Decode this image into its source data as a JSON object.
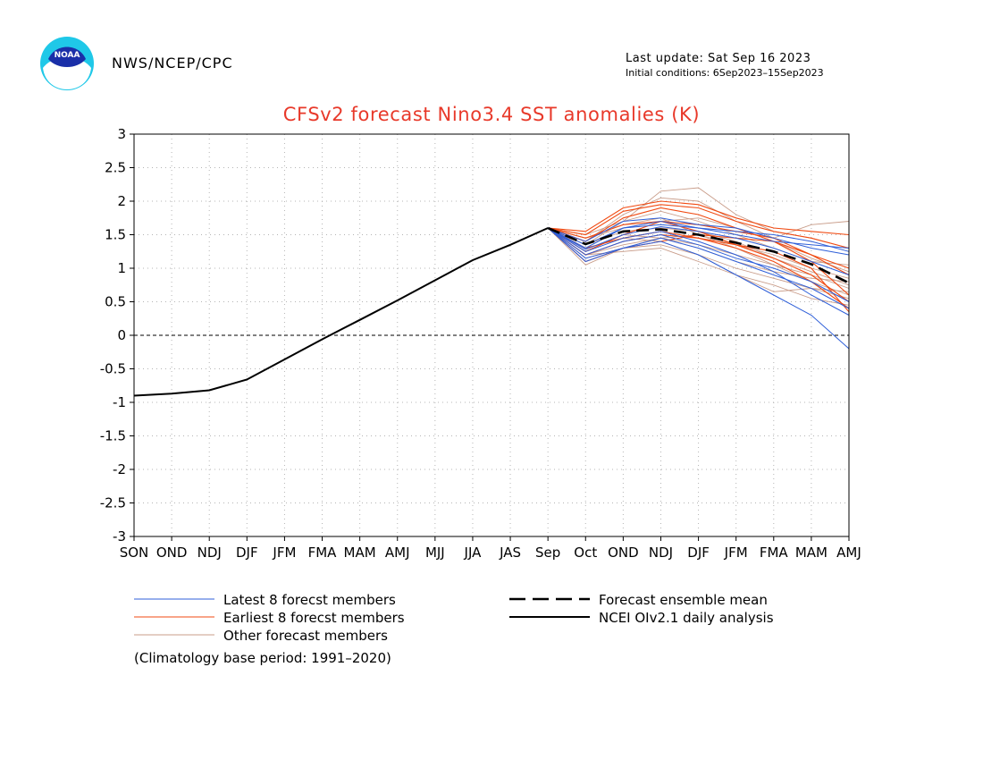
{
  "header": {
    "agency": "NWS/NCEP/CPC",
    "last_update": "Last update: Sat Sep 16 2023",
    "initial_conditions": "Initial conditions: 6Sep2023–15Sep2023",
    "logo_text": "NOAA"
  },
  "legend": {
    "latest": "Latest 8 forecst members",
    "earliest": "Earliest 8 forecst members",
    "other": "Other forecast members",
    "mean": "Forecast ensemble mean",
    "analysis": "NCEI OIv2.1 daily analysis",
    "base_period": "(Climatology base period: 1991–2020)"
  },
  "colors": {
    "title": "#e8392a",
    "latest": "#2f5fd8",
    "earliest": "#f04a12",
    "other": "#c99d8a",
    "analysis": "#000000",
    "grid": "#b4b4b4"
  },
  "chart_data": {
    "type": "line",
    "title": "CFSv2 forecast Nino3.4 SST anomalies (K)",
    "categories": [
      "SON",
      "OND",
      "NDJ",
      "DJF",
      "JFM",
      "FMA",
      "MAM",
      "AMJ",
      "MJJ",
      "JJA",
      "JAS",
      "Sep",
      "Oct",
      "OND",
      "NDJ",
      "DJF",
      "JFM",
      "FMA",
      "MAM",
      "AMJ"
    ],
    "ylim": [
      -3,
      3
    ],
    "yticks": [
      "3",
      "2.5",
      "2",
      "1.5",
      "1",
      "0.5",
      "0",
      "-0.5",
      "-1",
      "-1.5",
      "-2",
      "-2.5",
      "-3"
    ],
    "grid": true,
    "analysis": {
      "name": "NCEI OIv2.1 daily analysis",
      "values": [
        -0.9,
        -0.87,
        -0.82,
        -0.66,
        -0.36,
        -0.06,
        0.23,
        0.52,
        0.82,
        1.12,
        1.35,
        1.6
      ]
    },
    "ensemble_mean": {
      "name": "Forecast ensemble mean",
      "values": [
        1.36,
        1.55,
        1.58,
        1.5,
        1.38,
        1.25,
        1.06,
        0.78
      ]
    },
    "members": {
      "latest": [
        [
          1.3,
          1.6,
          1.65,
          1.6,
          1.5,
          1.4,
          1.35,
          1.3
        ],
        [
          1.15,
          1.3,
          1.4,
          1.2,
          0.9,
          0.6,
          0.3,
          -0.2
        ],
        [
          1.25,
          1.45,
          1.55,
          1.4,
          1.2,
          0.95,
          0.6,
          0.3
        ],
        [
          1.4,
          1.7,
          1.75,
          1.65,
          1.6,
          1.45,
          1.3,
          1.2
        ],
        [
          1.2,
          1.4,
          1.5,
          1.35,
          1.15,
          1.0,
          0.8,
          0.5
        ],
        [
          1.35,
          1.6,
          1.7,
          1.6,
          1.55,
          1.5,
          1.4,
          1.25
        ],
        [
          1.28,
          1.5,
          1.62,
          1.55,
          1.45,
          1.3,
          1.1,
          0.9
        ],
        [
          1.1,
          1.3,
          1.45,
          1.3,
          1.1,
          0.9,
          0.7,
          0.4
        ]
      ],
      "earliest": [
        [
          1.5,
          1.85,
          1.95,
          1.9,
          1.7,
          1.55,
          1.45,
          1.3
        ],
        [
          1.4,
          1.75,
          1.9,
          1.8,
          1.6,
          1.4,
          1.1,
          0.6
        ],
        [
          1.25,
          1.5,
          1.7,
          1.65,
          1.55,
          1.45,
          1.2,
          0.9
        ],
        [
          1.1,
          1.3,
          1.4,
          1.5,
          1.45,
          1.4,
          1.2,
          1.0
        ],
        [
          1.45,
          1.65,
          1.7,
          1.55,
          1.35,
          1.15,
          0.9,
          0.5
        ],
        [
          1.3,
          1.45,
          1.55,
          1.45,
          1.3,
          1.1,
          0.8,
          0.4
        ],
        [
          1.55,
          1.9,
          2.0,
          1.95,
          1.75,
          1.6,
          1.55,
          1.5
        ],
        [
          1.2,
          1.4,
          1.5,
          1.45,
          1.35,
          1.25,
          1.0,
          0.35
        ]
      ],
      "other": [
        [
          1.35,
          1.7,
          2.15,
          2.2,
          1.8,
          1.55,
          1.45,
          1.3
        ],
        [
          1.05,
          1.3,
          1.45,
          1.5,
          1.3,
          1.05,
          0.8,
          0.6
        ],
        [
          1.2,
          1.25,
          1.3,
          1.1,
          0.9,
          0.75,
          0.55,
          0.45
        ],
        [
          1.4,
          1.8,
          2.05,
          2.0,
          1.7,
          1.45,
          1.65,
          1.7
        ],
        [
          1.3,
          1.45,
          1.4,
          1.2,
          1.0,
          0.85,
          0.7,
          0.55
        ],
        [
          1.45,
          1.6,
          1.7,
          1.75,
          1.6,
          1.4,
          1.15,
          0.95
        ],
        [
          1.25,
          1.5,
          1.45,
          1.3,
          1.1,
          0.95,
          0.85,
          0.8
        ],
        [
          1.15,
          1.3,
          1.35,
          1.2,
          0.9,
          0.65,
          0.7,
          0.65
        ],
        [
          1.5,
          1.7,
          1.85,
          1.7,
          1.5,
          1.3,
          1.1,
          1.05
        ],
        [
          1.35,
          1.55,
          1.6,
          1.55,
          1.4,
          1.15,
          0.95,
          0.75
        ],
        [
          1.2,
          1.35,
          1.45,
          1.35,
          1.2,
          1.05,
          0.9,
          0.7
        ],
        [
          1.45,
          1.65,
          1.75,
          1.5,
          1.35,
          1.2,
          1.0,
          0.85
        ]
      ]
    }
  }
}
